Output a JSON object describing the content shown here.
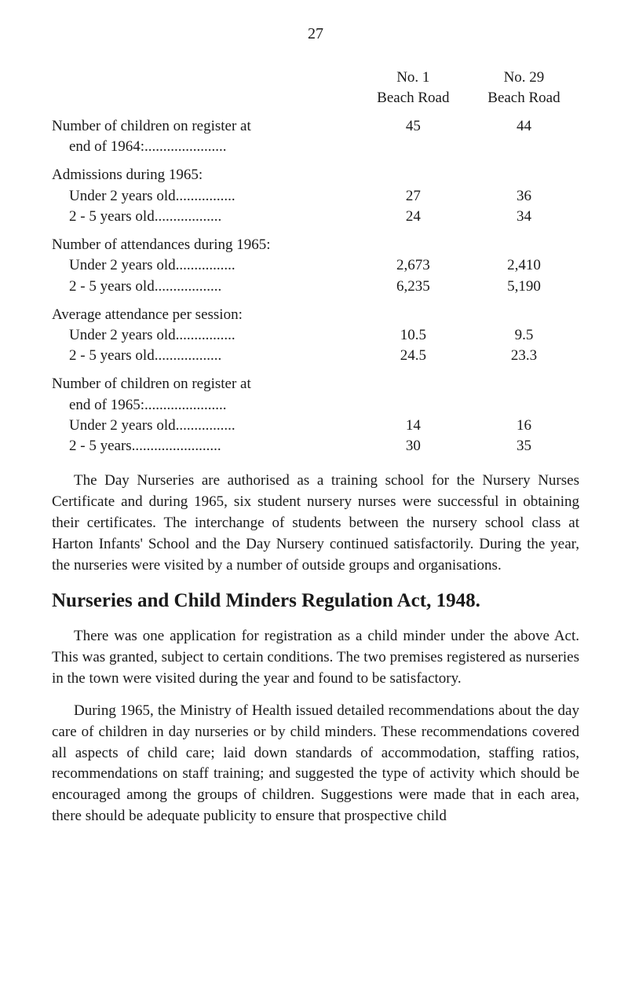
{
  "page_number": "27",
  "table": {
    "header": {
      "col_a_line1": "No. 1",
      "col_a_line2": "Beach Road",
      "col_b_line1": "No. 29",
      "col_b_line2": "Beach Road"
    },
    "rows": [
      {
        "type": "group",
        "label": "Number of children on register at",
        "line2": "end of 1964:......................",
        "a": "45",
        "b": "44"
      },
      {
        "type": "group",
        "label": "Admissions during 1965:",
        "sub": [
          {
            "label": "Under 2 years old................",
            "a": "27",
            "b": "36"
          },
          {
            "label": "2 - 5 years old..................",
            "a": "24",
            "b": "34"
          }
        ]
      },
      {
        "type": "group",
        "label": "Number of attendances during 1965:",
        "sub": [
          {
            "label": "Under 2 years old................",
            "a": "2,673",
            "b": "2,410"
          },
          {
            "label": "2 - 5 years old..................",
            "a": "6,235",
            "b": "5,190"
          }
        ]
      },
      {
        "type": "group",
        "label": "Average attendance per session:",
        "sub": [
          {
            "label": "Under 2 years old................",
            "a": "10.5",
            "b": "9.5"
          },
          {
            "label": "2 - 5 years old..................",
            "a": "24.5",
            "b": "23.3"
          }
        ]
      },
      {
        "type": "group",
        "label": "Number of children on register at",
        "line2": "end of 1965:......................",
        "sub": [
          {
            "label": "Under 2 years old................",
            "a": "14",
            "b": "16"
          },
          {
            "label": "2 - 5 years........................",
            "a": "30",
            "b": "35"
          }
        ]
      }
    ]
  },
  "paragraphs": {
    "p1": "The Day Nurseries are authorised as a training school for the Nursery Nurses Certificate and during 1965, six student nursery nurses were successful in obtaining their certificates. The interchange of students between the nursery school class at Harton Infants' School and the Day Nursery continued satisfactorily. During the year, the nurseries were visited by a number of outside groups and organisations.",
    "heading": "Nurseries and Child Minders Regulation Act, 1948.",
    "p2": "There was one application for registration as a child minder under the above Act. This was granted, subject to certain conditions.  The two premises registered as nurseries in the town were visited during the year and found to be satisfactory.",
    "p3": "During 1965, the Ministry of Health issued detailed recommendations about the day care of children in day nurseries or by child minders. These recommendations covered all aspects of child care; laid down standards of accommodation, staffing ratios, recommendations on staff training; and suggested the type of activity which should be encouraged among the groups of children. Suggestions were made that in each area, there should be adequate publicity to ensure that prospective child"
  }
}
